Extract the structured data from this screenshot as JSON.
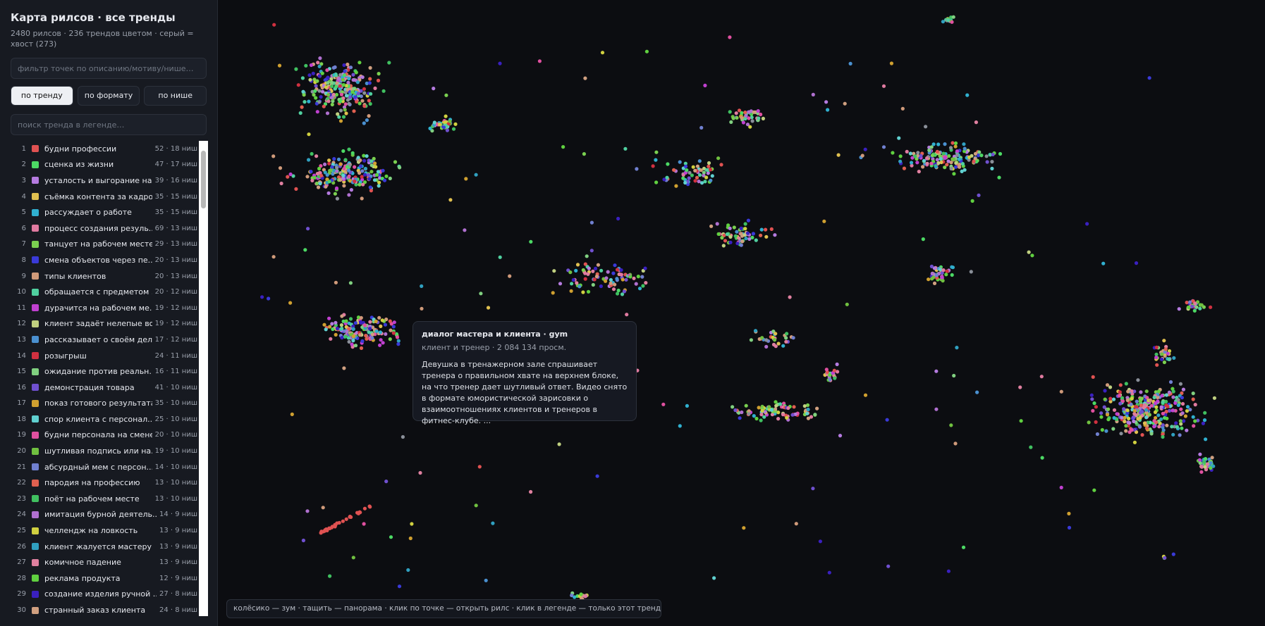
{
  "sidebar": {
    "title": "Карта рилсов · все тренды",
    "subtitle": "2480 рилсов · 236 трендов цветом · серый = хвост (273)",
    "filter_placeholder": "фильтр точек по описанию/мотиву/нише…",
    "buttons": [
      "по тренду",
      "по формату",
      "по нише"
    ],
    "active_button": 0,
    "search_placeholder": "поиск тренда в легенде…",
    "legend": [
      {
        "rank": "1",
        "name": "будни профессии",
        "stats": "52 · 18 ниш",
        "color": "#e05252"
      },
      {
        "rank": "2",
        "name": "сценка из жизни",
        "stats": "47 · 17 ниш",
        "color": "#4cd964"
      },
      {
        "rank": "3",
        "name": "усталость и выгорание на...",
        "stats": "39 · 16 ниш",
        "color": "#b57be0"
      },
      {
        "rank": "4",
        "name": "съёмка контента за кадром",
        "stats": "35 · 15 ниш",
        "color": "#e0c050"
      },
      {
        "rank": "5",
        "name": "рассуждает о работе",
        "stats": "35 · 15 ниш",
        "color": "#30b0d0"
      },
      {
        "rank": "6",
        "name": "процесс создания резуль...",
        "stats": "69 · 13 ниш",
        "color": "#e07aa0"
      },
      {
        "rank": "7",
        "name": "танцует на рабочем месте",
        "stats": "29 · 13 ниш",
        "color": "#7ad050"
      },
      {
        "rank": "8",
        "name": "смена объектов через пе...",
        "stats": "20 · 13 ниш",
        "color": "#3a3ad8"
      },
      {
        "rank": "9",
        "name": "типы клиентов",
        "stats": "20 · 13 ниш",
        "color": "#d09a7a"
      },
      {
        "rank": "10",
        "name": "обращается с предметом ...",
        "stats": "20 · 12 ниш",
        "color": "#50d0a0"
      },
      {
        "rank": "11",
        "name": "дурачится на рабочем ме...",
        "stats": "19 · 12 ниш",
        "color": "#c040d0"
      },
      {
        "rank": "12",
        "name": "клиент задаёт нелепые во...",
        "stats": "19 · 12 ниш",
        "color": "#c0d080"
      },
      {
        "rank": "13",
        "name": "рассказывает о своём деле",
        "stats": "17 · 12 ниш",
        "color": "#4a90d0"
      },
      {
        "rank": "14",
        "name": "розыгрыш",
        "stats": "24 · 11 ниш",
        "color": "#d03040"
      },
      {
        "rank": "15",
        "name": "ожидание против реальн...",
        "stats": "16 · 11 ниш",
        "color": "#80d080"
      },
      {
        "rank": "16",
        "name": "демонстрация товара",
        "stats": "41 · 10 ниш",
        "color": "#7050d0"
      },
      {
        "rank": "17",
        "name": "показ готового результата",
        "stats": "35 · 10 ниш",
        "color": "#d0a030"
      },
      {
        "rank": "18",
        "name": "спор клиента с персонал...",
        "stats": "25 · 10 ниш",
        "color": "#60d0d0"
      },
      {
        "rank": "19",
        "name": "будни персонала на смене",
        "stats": "20 · 10 ниш",
        "color": "#e050a0"
      },
      {
        "rank": "20",
        "name": "шутливая подпись или на...",
        "stats": "19 · 10 ниш",
        "color": "#70c040"
      },
      {
        "rank": "21",
        "name": "абсурдный мем с персон...",
        "stats": "14 · 10 ниш",
        "color": "#7080d0"
      },
      {
        "rank": "22",
        "name": "пародия на профессию",
        "stats": "13 · 10 ниш",
        "color": "#e06050"
      },
      {
        "rank": "23",
        "name": "поёт на рабочем месте",
        "stats": "13 · 10 ниш",
        "color": "#40c060"
      },
      {
        "rank": "24",
        "name": "имитация бурной деятель...",
        "stats": "14 · 9 ниш",
        "color": "#b070d0"
      },
      {
        "rank": "25",
        "name": "челлендж на ловкость",
        "stats": "13 · 9 ниш",
        "color": "#d0d040"
      },
      {
        "rank": "26",
        "name": "клиент жалуется мастеру",
        "stats": "13 · 9 ниш",
        "color": "#30a0c0"
      },
      {
        "rank": "27",
        "name": "комичное падение",
        "stats": "13 · 9 ниш",
        "color": "#e080a0"
      },
      {
        "rank": "28",
        "name": "реклама продукта",
        "stats": "12 · 9 ниш",
        "color": "#60d040"
      },
      {
        "rank": "29",
        "name": "создание изделия ручной ...",
        "stats": "27 · 8 ниш",
        "color": "#3a20c0"
      },
      {
        "rank": "30",
        "name": "странный заказ клиента",
        "stats": "24 · 8 ниш",
        "color": "#d0a080"
      }
    ]
  },
  "map": {
    "tail_color": "#8a8f99",
    "tooltip": {
      "title": "диалог мастера и клиента · gym",
      "meta": "клиент и тренер · 2 084 134 просм.",
      "body": "Девушка в тренажерном зале спрашивает тренера о правильном хвате на верхнем блоке, на что тренер дает шутливый ответ. Видео снято в формате юмористической зарисовки о взаимоотношениях клиентов и тренеров в фитнес-клубе. ..."
    },
    "hint": "колёсико — зум · тащить — панорама · клик по точке — открыть рилс · клик в легенде — только этот тренд · повтор — сброс"
  }
}
